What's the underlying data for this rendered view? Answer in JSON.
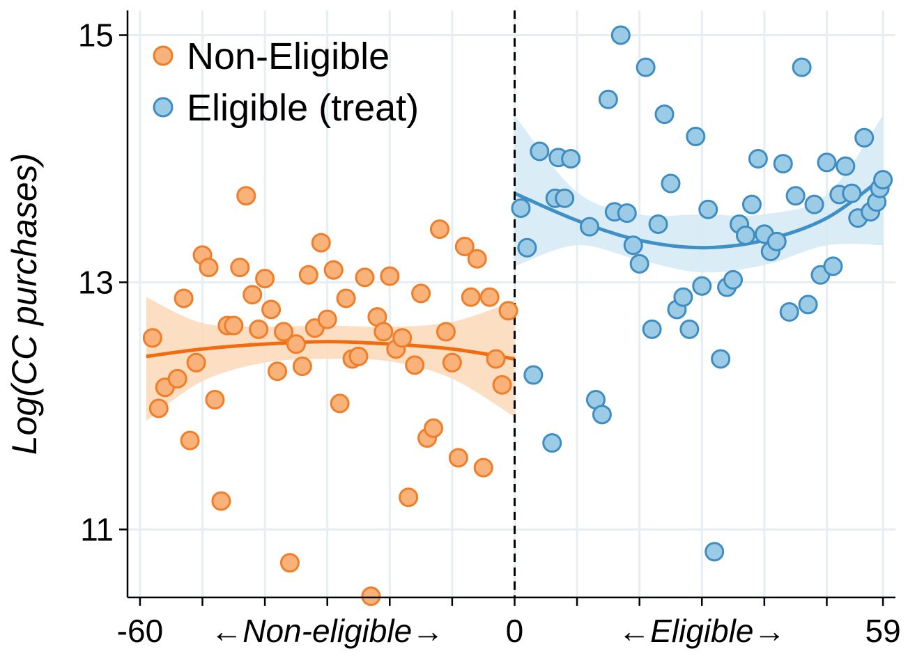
{
  "chart_data": {
    "type": "scatter",
    "title": "",
    "ylabel": "Log(CC purchases)",
    "xlim": [
      -62,
      61
    ],
    "ylim": [
      10.45,
      15.2
    ],
    "y_ticks": [
      11,
      13,
      15
    ],
    "x_tick_labels": [
      {
        "x": -60,
        "label": "-60"
      },
      {
        "x": 0,
        "label": "0"
      },
      {
        "x": 59,
        "label": "59"
      }
    ],
    "x_annotations": [
      {
        "x": -30,
        "text": "←Non-eligible→"
      },
      {
        "x": 30,
        "text": "←Eligible→"
      }
    ],
    "x_minor_ticks": [
      -60,
      -50,
      -40,
      -30,
      -20,
      -10,
      0,
      10,
      20,
      30,
      40,
      50,
      59
    ],
    "cutoff_x": 0,
    "grid": true,
    "legend_position": "top-left",
    "colors": {
      "non_eligible_fill": "#f9b27a",
      "non_eligible_edge": "#f07d28",
      "non_eligible_line": "#f26b0f",
      "non_eligible_band": "#fcd9b8",
      "eligible_fill": "#9ccbe6",
      "eligible_edge": "#3d8dc2",
      "eligible_line": "#4090c8",
      "eligible_band": "#d4eaf5",
      "grid": "#e6eef3"
    },
    "series": [
      {
        "name": "Non-Eligible",
        "points": [
          [
            -58,
            12.55
          ],
          [
            -57,
            11.98
          ],
          [
            -56,
            12.15
          ],
          [
            -54,
            12.22
          ],
          [
            -53,
            12.87
          ],
          [
            -52,
            11.72
          ],
          [
            -51,
            12.35
          ],
          [
            -50,
            13.22
          ],
          [
            -49,
            13.12
          ],
          [
            -48,
            12.05
          ],
          [
            -47,
            11.23
          ],
          [
            -46,
            12.65
          ],
          [
            -45,
            12.65
          ],
          [
            -44,
            13.12
          ],
          [
            -43,
            13.7
          ],
          [
            -42,
            12.9
          ],
          [
            -41,
            12.62
          ],
          [
            -40,
            13.03
          ],
          [
            -39,
            12.78
          ],
          [
            -38,
            12.28
          ],
          [
            -37,
            12.6
          ],
          [
            -36,
            10.73
          ],
          [
            -35,
            12.5
          ],
          [
            -34,
            12.32
          ],
          [
            -33,
            13.06
          ],
          [
            -32,
            12.63
          ],
          [
            -31,
            13.32
          ],
          [
            -30,
            12.7
          ],
          [
            -29,
            13.1
          ],
          [
            -28,
            12.02
          ],
          [
            -27,
            12.87
          ],
          [
            -26,
            12.38
          ],
          [
            -25,
            12.4
          ],
          [
            -24,
            13.04
          ],
          [
            -23,
            10.46
          ],
          [
            -22,
            12.72
          ],
          [
            -21,
            12.6
          ],
          [
            -20,
            13.05
          ],
          [
            -19,
            12.46
          ],
          [
            -18,
            12.55
          ],
          [
            -17,
            11.26
          ],
          [
            -16,
            12.33
          ],
          [
            -15,
            12.91
          ],
          [
            -14,
            11.74
          ],
          [
            -13,
            11.82
          ],
          [
            -12,
            13.43
          ],
          [
            -11,
            12.6
          ],
          [
            -10,
            12.35
          ],
          [
            -9,
            11.58
          ],
          [
            -8,
            13.29
          ],
          [
            -7,
            12.88
          ],
          [
            -6,
            13.19
          ],
          [
            -5,
            11.5
          ],
          [
            -4,
            12.88
          ],
          [
            -3,
            12.38
          ],
          [
            -2,
            12.17
          ],
          [
            -1,
            12.77
          ]
        ],
        "fit": [
          [
            -59,
            12.4
          ],
          [
            -50,
            12.46
          ],
          [
            -40,
            12.5
          ],
          [
            -30,
            12.52
          ],
          [
            -20,
            12.5
          ],
          [
            -10,
            12.46
          ],
          [
            0,
            12.38
          ]
        ],
        "ci_upper": [
          [
            -59,
            12.88
          ],
          [
            -50,
            12.67
          ],
          [
            -40,
            12.64
          ],
          [
            -30,
            12.65
          ],
          [
            -20,
            12.64
          ],
          [
            -10,
            12.68
          ],
          [
            0,
            12.85
          ]
        ],
        "ci_lower": [
          [
            -59,
            11.88
          ],
          [
            -50,
            12.2
          ],
          [
            -40,
            12.35
          ],
          [
            -30,
            12.38
          ],
          [
            -20,
            12.36
          ],
          [
            -10,
            12.22
          ],
          [
            0,
            11.91
          ]
        ]
      },
      {
        "name": "Eligible (treat)",
        "points": [
          [
            1,
            13.6
          ],
          [
            2,
            13.28
          ],
          [
            3,
            12.25
          ],
          [
            4,
            14.06
          ],
          [
            6,
            11.7
          ],
          [
            6.5,
            13.68
          ],
          [
            7,
            14.01
          ],
          [
            8,
            13.68
          ],
          [
            9,
            14.0
          ],
          [
            12,
            13.45
          ],
          [
            13,
            12.05
          ],
          [
            14,
            11.93
          ],
          [
            15,
            14.48
          ],
          [
            16,
            13.57
          ],
          [
            17,
            15.0
          ],
          [
            18,
            13.56
          ],
          [
            19,
            13.3
          ],
          [
            20,
            13.15
          ],
          [
            21,
            14.74
          ],
          [
            22,
            12.62
          ],
          [
            23,
            13.47
          ],
          [
            24,
            14.36
          ],
          [
            25,
            13.8
          ],
          [
            26,
            12.78
          ],
          [
            27,
            12.88
          ],
          [
            28,
            12.62
          ],
          [
            29,
            14.18
          ],
          [
            30,
            12.97
          ],
          [
            31,
            13.59
          ],
          [
            32,
            10.82
          ],
          [
            33,
            12.38
          ],
          [
            34,
            12.96
          ],
          [
            35,
            13.02
          ],
          [
            36,
            13.47
          ],
          [
            37,
            13.38
          ],
          [
            38,
            13.63
          ],
          [
            39,
            14.0
          ],
          [
            40,
            13.39
          ],
          [
            41,
            13.25
          ],
          [
            42,
            13.33
          ],
          [
            43,
            13.96
          ],
          [
            44,
            12.76
          ],
          [
            45,
            13.7
          ],
          [
            46,
            14.74
          ],
          [
            47,
            12.82
          ],
          [
            48,
            13.63
          ],
          [
            49,
            13.06
          ],
          [
            50,
            13.97
          ],
          [
            51,
            13.13
          ],
          [
            52,
            13.71
          ],
          [
            53,
            13.94
          ],
          [
            54,
            13.72
          ],
          [
            55,
            13.52
          ],
          [
            56,
            14.17
          ],
          [
            57,
            13.57
          ],
          [
            58,
            13.65
          ],
          [
            58.5,
            13.76
          ],
          [
            59,
            13.83
          ]
        ],
        "fit": [
          [
            0,
            13.72
          ],
          [
            10,
            13.5
          ],
          [
            20,
            13.34
          ],
          [
            30,
            13.28
          ],
          [
            40,
            13.34
          ],
          [
            50,
            13.52
          ],
          [
            59,
            13.85
          ]
        ],
        "ci_upper": [
          [
            0,
            14.35
          ],
          [
            10,
            13.73
          ],
          [
            20,
            13.55
          ],
          [
            30,
            13.55
          ],
          [
            40,
            13.55
          ],
          [
            50,
            13.71
          ],
          [
            59,
            14.35
          ]
        ],
        "ci_lower": [
          [
            0,
            13.13
          ],
          [
            10,
            13.3
          ],
          [
            20,
            13.18
          ],
          [
            30,
            13.08
          ],
          [
            40,
            13.14
          ],
          [
            50,
            13.3
          ],
          [
            59,
            13.3
          ]
        ]
      }
    ]
  }
}
